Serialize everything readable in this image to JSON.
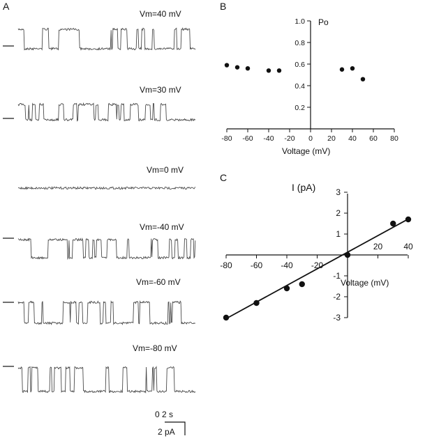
{
  "panel_a": {
    "label": "A",
    "traces": [
      {
        "label": "Vm=40 mV",
        "marker": true
      },
      {
        "label": "Vm=30 mV",
        "marker": true
      },
      {
        "label": "Vm=0 mV",
        "marker": false
      },
      {
        "label": "Vm=-40 mV",
        "marker": true
      },
      {
        "label": "Vm=-60 mV",
        "marker": true
      },
      {
        "label": "Vm=-80 mV",
        "marker": true
      }
    ],
    "scale_time": "0 2 s",
    "scale_current": "2 pA"
  },
  "chart_data": [
    {
      "panel": "B",
      "type": "scatter",
      "ylabel": "Po",
      "xlabel": "Voltage (mV)",
      "xlim": [
        -80,
        80
      ],
      "ylim": [
        0,
        1.0
      ],
      "xticks": [
        "-80",
        "-60",
        "-40",
        "-20",
        "0",
        "20",
        "40",
        "60",
        "80"
      ],
      "yticks": [
        "0.2",
        "0.4",
        "0.6",
        "0.8",
        "1.0"
      ],
      "x": [
        -80,
        -70,
        -60,
        -40,
        -30,
        30,
        40,
        50
      ],
      "y": [
        0.59,
        0.57,
        0.56,
        0.54,
        0.54,
        0.55,
        0.56,
        0.46
      ],
      "grid": false
    },
    {
      "panel": "C",
      "type": "scatter",
      "ylabel": "I (pA)",
      "xlabel": "Voltage (mV)",
      "xlim": [
        -80,
        40
      ],
      "ylim": [
        -3,
        3
      ],
      "xticks": [
        "-80",
        "-60",
        "-40",
        "-20",
        "20",
        "40"
      ],
      "yticks": [
        "3",
        "2",
        "1",
        "-1",
        "-2",
        "-3"
      ],
      "x": [
        -80,
        -60,
        -40,
        -30,
        0,
        30,
        40
      ],
      "y": [
        -3.0,
        -2.3,
        -1.6,
        -1.4,
        0.0,
        1.5,
        1.7
      ],
      "fit": {
        "x": [
          -80,
          40
        ],
        "y": [
          -3.05,
          1.72
        ]
      },
      "grid": false
    }
  ]
}
